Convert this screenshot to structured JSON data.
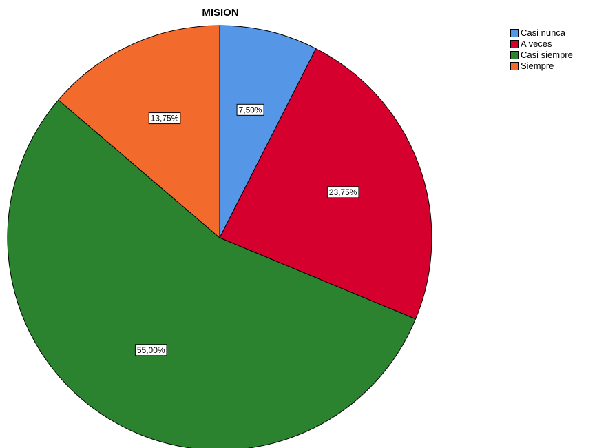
{
  "chart_data": {
    "type": "pie",
    "title": "MISION",
    "legend_position": "top-right",
    "slices": [
      {
        "label": "Casi nunca",
        "value": 7.5,
        "display": "7,50%",
        "color": "#5696e6"
      },
      {
        "label": "A veces",
        "value": 23.75,
        "display": "23,75%",
        "color": "#d5002d"
      },
      {
        "label": "Casi siempre",
        "value": 55.0,
        "display": "55,00%",
        "color": "#2b8330"
      },
      {
        "label": "Siempre",
        "value": 13.75,
        "display": "13,75%",
        "color": "#f26b2d"
      }
    ]
  }
}
